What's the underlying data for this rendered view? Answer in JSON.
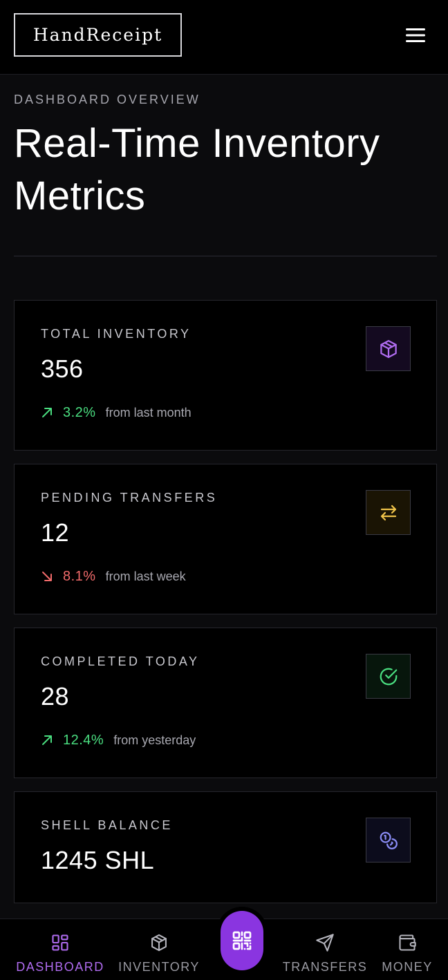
{
  "header": {
    "logo_text": "HandReceipt",
    "menu_icon": "hamburger-menu-icon"
  },
  "hero": {
    "eyebrow": "DASHBOARD OVERVIEW",
    "title": "Real-Time Inventory Metrics"
  },
  "cards": [
    {
      "label": "TOTAL INVENTORY",
      "value": "356",
      "trend_direction": "up",
      "trend_pct": "3.2%",
      "trend_note": "from last month",
      "icon": "package-icon",
      "icon_color": "#b06cf0",
      "icon_bg": "#140a20"
    },
    {
      "label": "PENDING TRANSFERS",
      "value": "12",
      "trend_direction": "down",
      "trend_pct": "8.1%",
      "trend_note": "from last week",
      "icon": "arrows-swap-icon",
      "icon_color": "#f0c44a",
      "icon_bg": "#1a1404"
    },
    {
      "label": "COMPLETED TODAY",
      "value": "28",
      "trend_direction": "up",
      "trend_pct": "12.4%",
      "trend_note": "from yesterday",
      "icon": "check-circle-icon",
      "icon_color": "#4ade80",
      "icon_bg": "#07160c"
    },
    {
      "label": "SHELL BALANCE",
      "value": "1245 SHL",
      "icon": "coins-icon",
      "icon_color": "#8a8cf5",
      "icon_bg": "#0c0c1c"
    }
  ],
  "bottom_nav": {
    "items": [
      {
        "label": "DASHBOARD",
        "icon": "dashboard-grid-icon",
        "active": true
      },
      {
        "label": "INVENTORY",
        "icon": "package-icon",
        "active": false
      },
      {
        "label": "TRANSFERS",
        "icon": "send-icon",
        "active": false
      },
      {
        "label": "MONEY",
        "icon": "wallet-icon",
        "active": false
      }
    ],
    "scan_icon": "qr-code-icon"
  },
  "colors": {
    "accent": "#8a35e0",
    "accent_text": "#b06cf0",
    "positive": "#4ade80",
    "negative": "#f26b6b",
    "background": "#0b0b0d",
    "card_background": "#000000"
  }
}
